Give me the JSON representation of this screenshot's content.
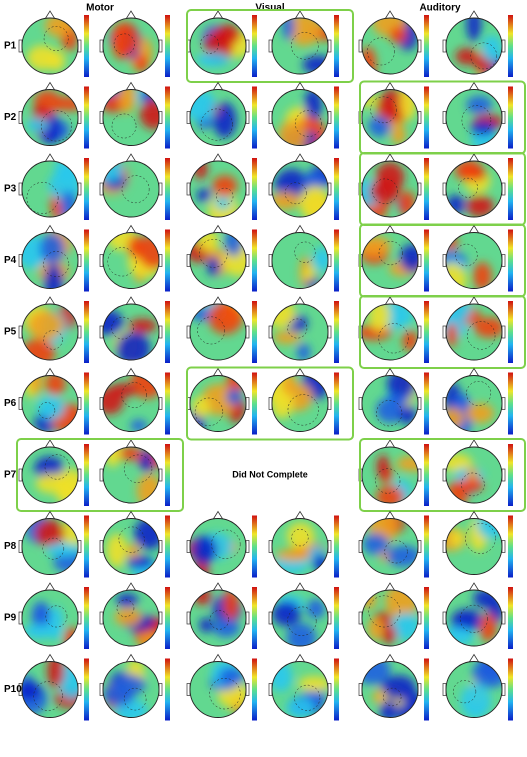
{
  "headers": {
    "motor": "Motor",
    "visual": "Visual",
    "auditory": "Auditory"
  },
  "rows": [
    {
      "label": "P1",
      "highlight": [
        "visual"
      ]
    },
    {
      "label": "P2",
      "highlight": [
        "auditory"
      ]
    },
    {
      "label": "P3",
      "highlight": [
        "auditory"
      ]
    },
    {
      "label": "P4",
      "highlight": [
        "auditory"
      ]
    },
    {
      "label": "P5",
      "highlight": [
        "auditory"
      ]
    },
    {
      "label": "P6",
      "highlight": [
        "visual"
      ]
    },
    {
      "label": "P7",
      "highlight": [
        "motor",
        "auditory"
      ],
      "missing": "visual",
      "missing_text": "Did Not Complete"
    },
    {
      "label": "P8",
      "highlight": []
    },
    {
      "label": "P9",
      "highlight": []
    },
    {
      "label": "P10",
      "highlight": []
    }
  ]
}
